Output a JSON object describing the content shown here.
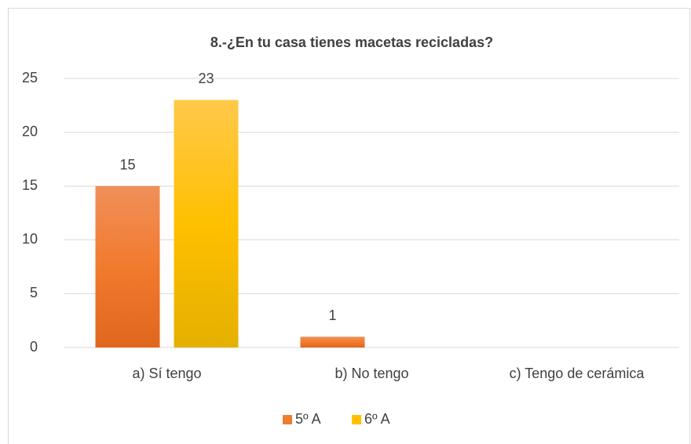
{
  "chart_data": {
    "type": "bar",
    "title": "8.-¿En tu casa tienes macetas recicladas?",
    "categories": [
      "a) Sí tengo",
      "b) No tengo",
      "c) Tengo de cerámica"
    ],
    "series": [
      {
        "name": "5º A",
        "color": "#ed7d31",
        "values": [
          15,
          1,
          null
        ]
      },
      {
        "name": "6º A",
        "color": "#ffc000",
        "values": [
          23,
          null,
          null
        ]
      }
    ],
    "ylim": [
      0,
      25
    ],
    "yticks": [
      0,
      5,
      10,
      15,
      20,
      25
    ],
    "grid": true,
    "legend": "bottom"
  }
}
